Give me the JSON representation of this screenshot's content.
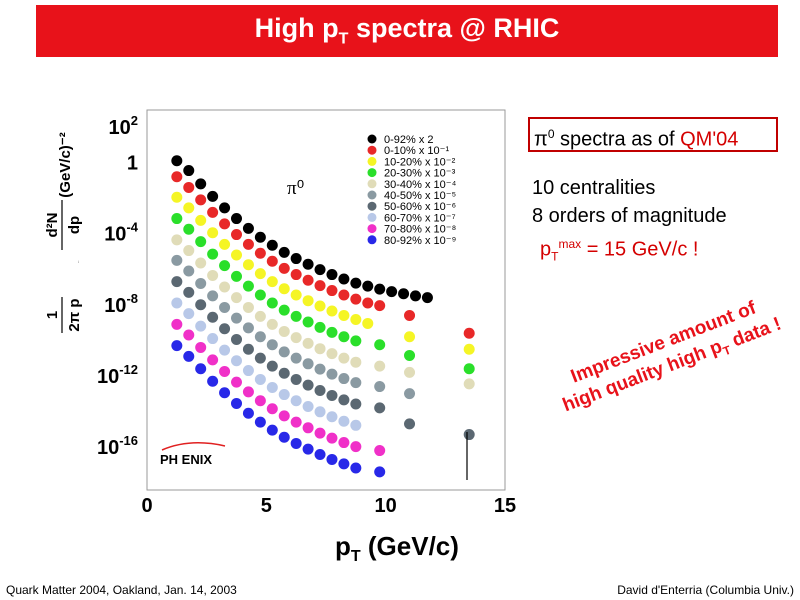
{
  "title": {
    "prefix": "High p",
    "sub": "T",
    "suffix": " spectra @ RHIC"
  },
  "colors": {
    "title_bg": "#e8121a",
    "accent_red": "#d40000"
  },
  "chart_data": {
    "type": "scatter",
    "title": "",
    "xlabel": {
      "main": "p",
      "sub": "T",
      "unit": " (GeV/c)"
    },
    "ylabel": {
      "prefix": "1",
      "denominator": "2π p",
      "top_fraction": "d²N",
      "bottom_fraction": "dp",
      "unit": "(GeV/c)⁻²"
    },
    "xlim": [
      0,
      15
    ],
    "ylim_log10": [
      -18,
      2
    ],
    "y_scale": "log",
    "x_ticks": [
      "0",
      "5",
      "10",
      "15"
    ],
    "y_ticks": [
      {
        "log": 2,
        "label": "10",
        "exp": "2"
      },
      {
        "log": 0,
        "label": "1",
        "exp": ""
      },
      {
        "log": -4,
        "label": "10",
        "exp": "-4"
      },
      {
        "log": -8,
        "label": "10",
        "exp": "-8"
      },
      {
        "log": -12,
        "label": "10",
        "exp": "-12"
      },
      {
        "log": -16,
        "label": "10",
        "exp": "-16"
      }
    ],
    "annotation": "π⁰",
    "logo": "PH ENIX",
    "legend_position": "top-right",
    "series": [
      {
        "name": "0-92% x 2",
        "color": "#000000",
        "x": [
          1.25,
          1.75,
          2.25,
          2.75,
          3.25,
          3.75,
          4.25,
          4.75,
          5.25,
          5.75,
          6.25,
          6.75,
          7.25,
          7.75,
          8.25,
          8.75,
          9.25,
          9.75,
          10.25,
          10.75,
          11.25,
          11.75
        ],
        "log_y": [
          0.1,
          -0.45,
          -1.2,
          -1.9,
          -2.55,
          -3.15,
          -3.7,
          -4.2,
          -4.65,
          -5.05,
          -5.4,
          -5.72,
          -6.02,
          -6.3,
          -6.55,
          -6.78,
          -6.95,
          -7.12,
          -7.26,
          -7.38,
          -7.5,
          -7.6
        ]
      },
      {
        "name": "0-10% x 10⁻¹",
        "color": "#e82828",
        "x": [
          1.25,
          1.75,
          2.25,
          2.75,
          3.25,
          3.75,
          4.25,
          4.75,
          5.25,
          5.75,
          6.25,
          6.75,
          7.25,
          7.75,
          8.25,
          8.75,
          9.25,
          9.75,
          11.0,
          13.5
        ],
        "log_y": [
          -0.8,
          -1.4,
          -2.1,
          -2.8,
          -3.45,
          -4.05,
          -4.6,
          -5.1,
          -5.55,
          -5.95,
          -6.3,
          -6.62,
          -6.92,
          -7.2,
          -7.45,
          -7.68,
          -7.9,
          -8.05,
          -8.6,
          -9.6
        ]
      },
      {
        "name": "10-20% x 10⁻²",
        "color": "#f5f525",
        "x": [
          1.25,
          1.75,
          2.25,
          2.75,
          3.25,
          3.75,
          4.25,
          4.75,
          5.25,
          5.75,
          6.25,
          6.75,
          7.25,
          7.75,
          8.25,
          8.75,
          9.25,
          11.0,
          13.5
        ],
        "log_y": [
          -1.95,
          -2.55,
          -3.25,
          -3.95,
          -4.6,
          -5.2,
          -5.75,
          -6.25,
          -6.7,
          -7.1,
          -7.45,
          -7.77,
          -8.07,
          -8.35,
          -8.6,
          -8.83,
          -9.05,
          -9.8,
          -10.5
        ]
      },
      {
        "name": "20-30% x 10⁻³",
        "color": "#2adf2a",
        "x": [
          1.25,
          1.75,
          2.25,
          2.75,
          3.25,
          3.75,
          4.25,
          4.75,
          5.25,
          5.75,
          6.25,
          6.75,
          7.25,
          7.75,
          8.25,
          8.75,
          9.75,
          11.0,
          13.5
        ],
        "log_y": [
          -3.15,
          -3.75,
          -4.45,
          -5.15,
          -5.8,
          -6.4,
          -6.95,
          -7.45,
          -7.9,
          -8.3,
          -8.65,
          -8.97,
          -9.27,
          -9.55,
          -9.8,
          -10.03,
          -10.25,
          -10.85,
          -11.6
        ]
      },
      {
        "name": "30-40% x 10⁻⁴",
        "color": "#e0dcb8",
        "x": [
          1.25,
          1.75,
          2.25,
          2.75,
          3.25,
          3.75,
          4.25,
          4.75,
          5.25,
          5.75,
          6.25,
          6.75,
          7.25,
          7.75,
          8.25,
          8.75,
          9.75,
          11.0,
          13.5
        ],
        "log_y": [
          -4.35,
          -4.95,
          -5.65,
          -6.35,
          -7.0,
          -7.6,
          -8.15,
          -8.65,
          -9.1,
          -9.5,
          -9.85,
          -10.17,
          -10.47,
          -10.75,
          -11.0,
          -11.23,
          -11.45,
          -11.8,
          -12.45
        ]
      },
      {
        "name": "40-50% x 10⁻⁵",
        "color": "#8a9aa2",
        "x": [
          1.25,
          1.75,
          2.25,
          2.75,
          3.25,
          3.75,
          4.25,
          4.75,
          5.25,
          5.75,
          6.25,
          6.75,
          7.25,
          7.75,
          8.25,
          8.75,
          9.75,
          11.0
        ],
        "log_y": [
          -5.5,
          -6.1,
          -6.8,
          -7.5,
          -8.15,
          -8.75,
          -9.3,
          -9.8,
          -10.25,
          -10.65,
          -11.0,
          -11.32,
          -11.62,
          -11.9,
          -12.15,
          -12.38,
          -12.6,
          -13.0
        ]
      },
      {
        "name": "50-60% x 10⁻⁶",
        "color": "#5b6872",
        "x": [
          1.25,
          1.75,
          2.25,
          2.75,
          3.25,
          3.75,
          4.25,
          4.75,
          5.25,
          5.75,
          6.25,
          6.75,
          7.25,
          7.75,
          8.25,
          8.75,
          9.75,
          11.0,
          13.5
        ],
        "log_y": [
          -6.7,
          -7.3,
          -8.0,
          -8.7,
          -9.35,
          -9.95,
          -10.5,
          -11.0,
          -11.45,
          -11.85,
          -12.2,
          -12.52,
          -12.82,
          -13.1,
          -13.35,
          -13.58,
          -13.8,
          -14.7,
          -15.3
        ]
      },
      {
        "name": "60-70% x 10⁻⁷",
        "color": "#b8c8e8",
        "x": [
          1.25,
          1.75,
          2.25,
          2.75,
          3.25,
          3.75,
          4.25,
          4.75,
          5.25,
          5.75,
          6.25,
          6.75,
          7.25,
          7.75,
          8.25,
          8.75
        ],
        "log_y": [
          -7.9,
          -8.5,
          -9.2,
          -9.9,
          -10.55,
          -11.15,
          -11.7,
          -12.2,
          -12.65,
          -13.05,
          -13.4,
          -13.72,
          -14.02,
          -14.3,
          -14.55,
          -14.78
        ]
      },
      {
        "name": "70-80% x 10⁻⁸",
        "color": "#f030c8",
        "x": [
          1.25,
          1.75,
          2.25,
          2.75,
          3.25,
          3.75,
          4.25,
          4.75,
          5.25,
          5.75,
          6.25,
          6.75,
          7.25,
          7.75,
          8.25,
          8.75,
          9.75
        ],
        "log_y": [
          -9.1,
          -9.7,
          -10.4,
          -11.1,
          -11.75,
          -12.35,
          -12.9,
          -13.4,
          -13.85,
          -14.25,
          -14.6,
          -14.92,
          -15.22,
          -15.5,
          -15.75,
          -15.98,
          -16.2
        ]
      },
      {
        "name": "80-92% x 10⁻⁹",
        "color": "#2828e8",
        "x": [
          1.25,
          1.75,
          2.25,
          2.75,
          3.25,
          3.75,
          4.25,
          4.75,
          5.25,
          5.75,
          6.25,
          6.75,
          7.25,
          7.75,
          8.25,
          8.75,
          9.75
        ],
        "log_y": [
          -10.3,
          -10.9,
          -11.6,
          -12.3,
          -12.95,
          -13.55,
          -14.1,
          -14.6,
          -15.05,
          -15.45,
          -15.8,
          -16.12,
          -16.42,
          -16.7,
          -16.95,
          -17.18,
          -17.4
        ]
      }
    ]
  },
  "info_box": {
    "prefix": "π",
    "sup": "0",
    "middle": " spectra as of ",
    "highlight": "QM'04"
  },
  "notes": {
    "line1": "10 centralities",
    "line2": "8 orders of magnitude",
    "pt_prefix": "p",
    "pt_sub": "T",
    "pt_sup": "max",
    "pt_suffix": " = 15 GeV/c !"
  },
  "impressive": {
    "line1": "Impressive amount of",
    "line2_prefix": "high quality high p",
    "line2_sub": "T",
    "line2_suffix": " data !"
  },
  "footer": {
    "left": "Quark Matter 2004, Oakland, Jan. 14, 2003",
    "right": "David d'Enterria (Columbia Univ.)"
  }
}
